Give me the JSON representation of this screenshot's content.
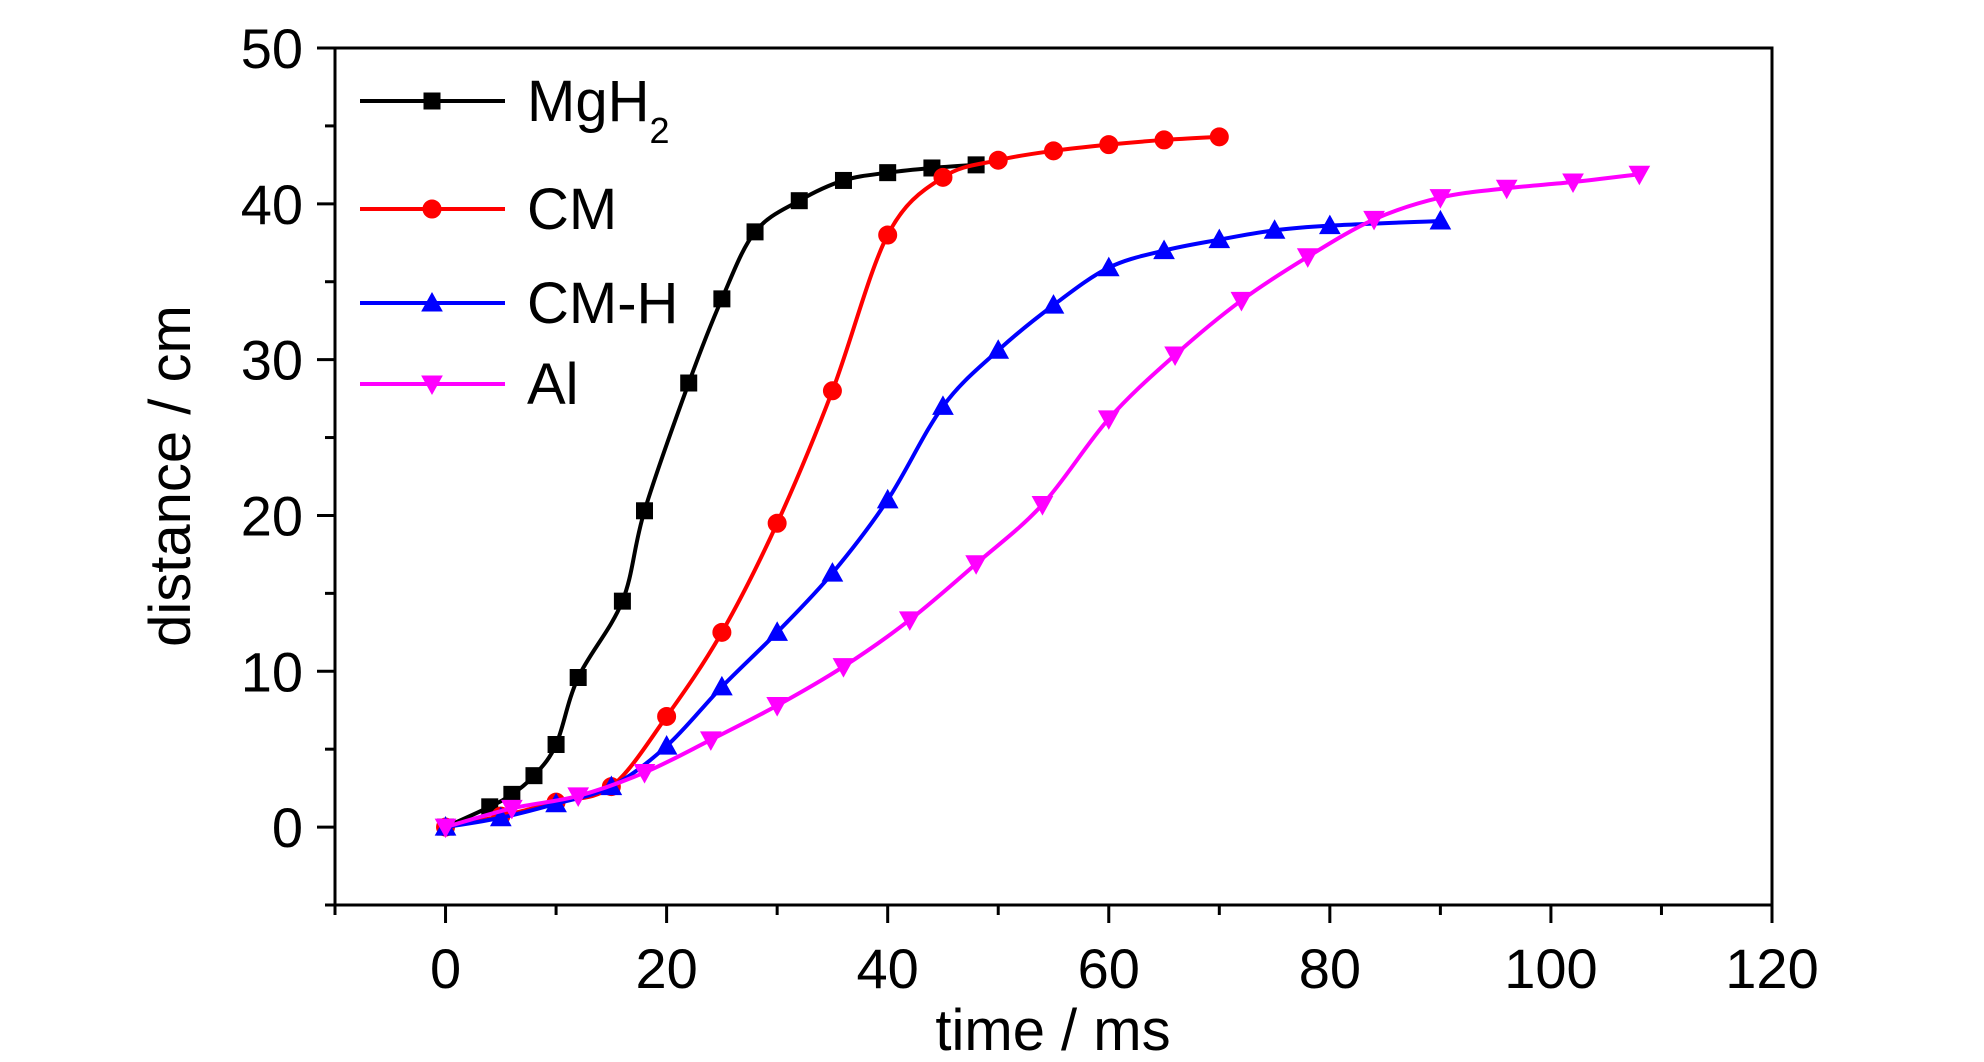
{
  "chart_data": {
    "type": "line",
    "xlabel": "time / ms",
    "ylabel": "distance / cm",
    "xlim": [
      -10,
      120
    ],
    "ylim": [
      -5,
      50
    ],
    "xticks": [
      "0",
      "20",
      "40",
      "60",
      "80",
      "100",
      "120"
    ],
    "yticks": [
      "0",
      "10",
      "20",
      "30",
      "40",
      "50"
    ],
    "grid": false,
    "legend_position": "top-left",
    "series": [
      {
        "name": "MgH",
        "name_subscript": "2",
        "color": "#000000",
        "marker": "square",
        "x": [
          0,
          4,
          6,
          8,
          10,
          12,
          16,
          18,
          22,
          25,
          28,
          32,
          36,
          40,
          44,
          48
        ],
        "y": [
          0,
          1.3,
          2.1,
          3.3,
          5.3,
          9.6,
          14.5,
          20.3,
          28.5,
          33.9,
          38.2,
          40.2,
          41.5,
          42.0,
          42.3,
          42.5
        ]
      },
      {
        "name": "CM",
        "color": "#ff0000",
        "marker": "circle",
        "x": [
          0,
          5,
          10,
          15,
          20,
          25,
          30,
          35,
          40,
          45,
          50,
          55,
          60,
          65,
          70
        ],
        "y": [
          0,
          0.7,
          1.6,
          2.6,
          7.1,
          12.5,
          19.5,
          28.0,
          38.0,
          41.7,
          42.8,
          43.4,
          43.8,
          44.1,
          44.3
        ]
      },
      {
        "name": "CM-H",
        "color": "#0000ff",
        "marker": "triangle-up",
        "x": [
          0,
          5,
          10,
          15,
          20,
          25,
          30,
          35,
          40,
          45,
          50,
          55,
          60,
          65,
          70,
          75,
          80,
          90
        ],
        "y": [
          0,
          0.6,
          1.5,
          2.6,
          5.2,
          9.0,
          12.5,
          16.3,
          21.0,
          27.0,
          30.6,
          33.5,
          35.9,
          37.0,
          37.7,
          38.3,
          38.6,
          38.9
        ]
      },
      {
        "name": "Al",
        "color": "#ff00ff",
        "marker": "triangle-down",
        "x": [
          0,
          6,
          12,
          18,
          24,
          30,
          36,
          42,
          48,
          54,
          60,
          66,
          72,
          78,
          84,
          90,
          96,
          102,
          108
        ],
        "y": [
          0,
          1.2,
          2.0,
          3.5,
          5.6,
          7.8,
          10.3,
          13.3,
          16.9,
          20.7,
          26.2,
          30.3,
          33.8,
          36.6,
          39.0,
          40.4,
          41.0,
          41.4,
          41.9
        ]
      }
    ]
  }
}
